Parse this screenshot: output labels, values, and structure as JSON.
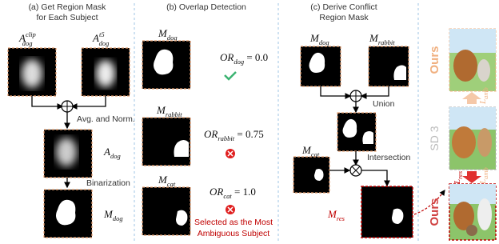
{
  "panel_a": {
    "title": [
      "(a) Get Region Mask",
      "for Each Subject"
    ],
    "clip_label": {
      "base": "A",
      "sup": "clip",
      "sub": "dog"
    },
    "t5_label": {
      "base": "A",
      "sup": "t5",
      "sub": "dog"
    },
    "step_avg": "Avg. and Norm.",
    "avg_label": {
      "base": "A",
      "sub": "dog"
    },
    "step_bin": "Binarization",
    "bin_label": {
      "base": "M",
      "sub": "dog"
    }
  },
  "panel_b": {
    "title": "(b) Overlap Detection",
    "rows": [
      {
        "mask": {
          "base": "M",
          "sub": "dog"
        },
        "or": {
          "base": "OR",
          "sub": "dog",
          "rest": " = 0.0"
        }
      },
      {
        "mask": {
          "base": "M",
          "sub": "rabbit"
        },
        "or": {
          "base": "OR",
          "sub": "rabbit",
          "rest": " = 0.75"
        }
      },
      {
        "mask": {
          "base": "M",
          "sub": "cat"
        },
        "or": {
          "base": "OR",
          "sub": "cat",
          "rest": " = 1.0"
        }
      }
    ],
    "note": [
      "Selected as the Most",
      "Ambiguous Subject"
    ]
  },
  "panel_c": {
    "title": [
      "(c) Derive Conflict",
      "Region Mask"
    ],
    "dog": {
      "base": "M",
      "sub": "dog"
    },
    "rabbit": {
      "base": "M",
      "sub": "rabbit"
    },
    "union": "Union",
    "cat": {
      "base": "M",
      "sub": "cat"
    },
    "intersection": "Intersection",
    "res": {
      "base": "M",
      "sub": "res"
    }
  },
  "panel_d": {
    "top": "Ours",
    "middle": "SD 3",
    "bottom": "Ours",
    "amb_up": {
      "base": "L",
      "sub": "amb"
    },
    "res": {
      "base": "L",
      "sub": "res"
    },
    "amb_down": {
      "base": "L",
      "sub": "amb"
    }
  }
}
